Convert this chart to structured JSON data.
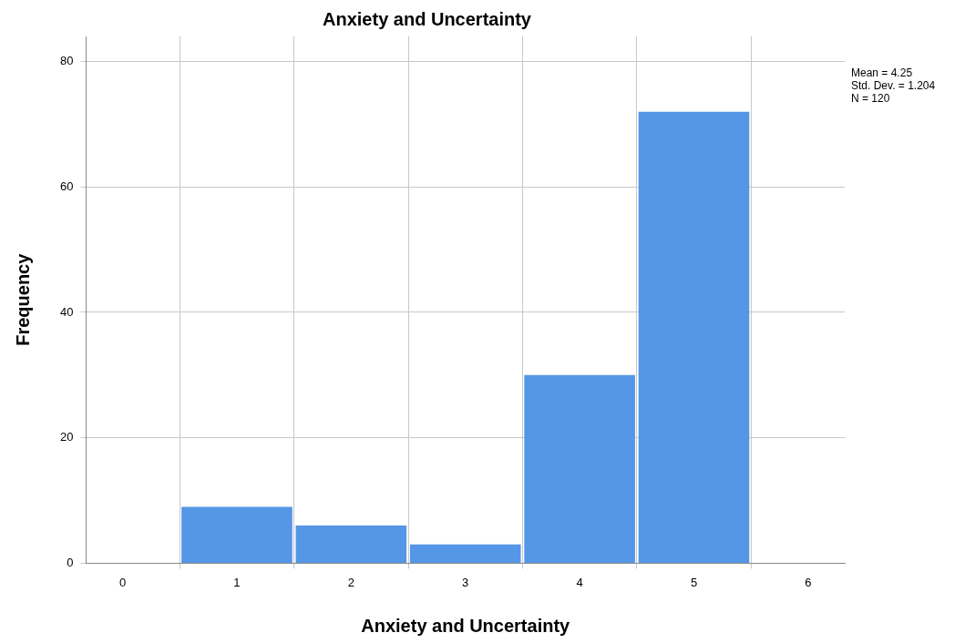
{
  "chart_data": {
    "type": "histogram",
    "title": "Anxiety and Uncertainty",
    "xlabel": "Anxiety and Uncertainty",
    "ylabel": "Frequency",
    "bins": [
      0.5,
      1.5,
      2.5,
      3.5,
      4.5,
      5.5
    ],
    "values": [
      9,
      6,
      3,
      30,
      72
    ],
    "color": "#5596e6",
    "xlim": [
      -0.32,
      6.32
    ],
    "xticks": [
      0,
      1,
      2,
      3,
      4,
      5,
      6
    ],
    "ylim": [
      0,
      84
    ],
    "yticks": [
      0,
      20,
      40,
      60,
      80
    ],
    "grid": true,
    "annotations": [
      "Mean = 4.25",
      "Std. Dev. = 1.204",
      "N = 120"
    ]
  }
}
